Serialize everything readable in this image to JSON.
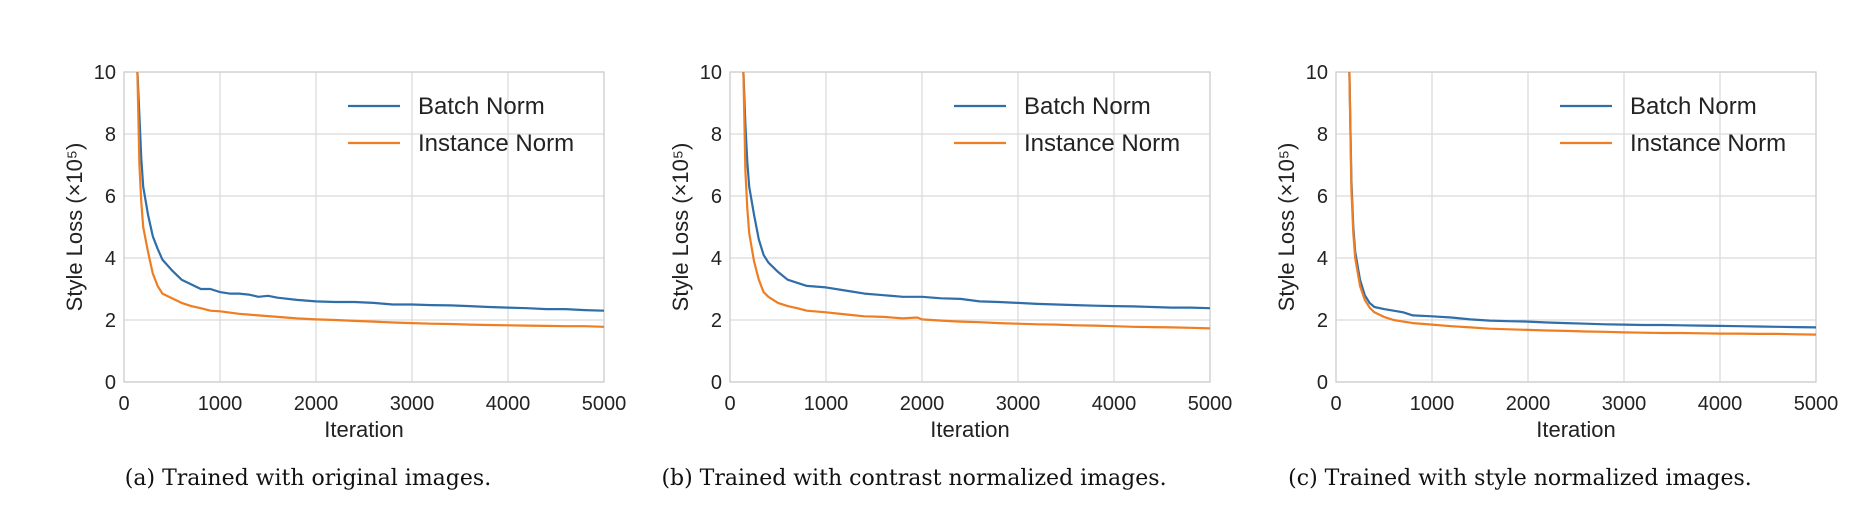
{
  "chart_data": [
    {
      "type": "line",
      "xlabel": "Iteration",
      "ylabel": "Style Loss",
      "ylabel_unit": "(×10⁵)",
      "xlim": [
        0,
        5000
      ],
      "ylim": [
        0,
        10
      ],
      "xticks": [
        0,
        1000,
        2000,
        3000,
        4000,
        5000
      ],
      "yticks": [
        0,
        2,
        4,
        6,
        8,
        10
      ],
      "grid": true,
      "legend_position": "top-right",
      "caption": "(a)  Trained with original images.",
      "series": [
        {
          "name": "Batch Norm",
          "color": "#2f6ea9",
          "points": [
            [
              140,
              10.0
            ],
            [
              160,
              8.6
            ],
            [
              180,
              7.2
            ],
            [
              200,
              6.3
            ],
            [
              250,
              5.4
            ],
            [
              300,
              4.7
            ],
            [
              350,
              4.3
            ],
            [
              400,
              3.95
            ],
            [
              500,
              3.6
            ],
            [
              600,
              3.3
            ],
            [
              700,
              3.15
            ],
            [
              800,
              3.0
            ],
            [
              900,
              3.0
            ],
            [
              1000,
              2.9
            ],
            [
              1100,
              2.85
            ],
            [
              1200,
              2.85
            ],
            [
              1300,
              2.82
            ],
            [
              1400,
              2.75
            ],
            [
              1500,
              2.78
            ],
            [
              1600,
              2.72
            ],
            [
              1800,
              2.65
            ],
            [
              2000,
              2.6
            ],
            [
              2200,
              2.58
            ],
            [
              2400,
              2.58
            ],
            [
              2600,
              2.55
            ],
            [
              2800,
              2.5
            ],
            [
              3000,
              2.5
            ],
            [
              3200,
              2.48
            ],
            [
              3400,
              2.47
            ],
            [
              3600,
              2.45
            ],
            [
              3800,
              2.42
            ],
            [
              4000,
              2.4
            ],
            [
              4200,
              2.38
            ],
            [
              4400,
              2.35
            ],
            [
              4600,
              2.35
            ],
            [
              4800,
              2.32
            ],
            [
              5000,
              2.3
            ]
          ]
        },
        {
          "name": "Instance Norm",
          "color": "#ef7d22",
          "points": [
            [
              140,
              10.0
            ],
            [
              160,
              7.0
            ],
            [
              180,
              5.8
            ],
            [
              200,
              5.0
            ],
            [
              250,
              4.2
            ],
            [
              300,
              3.5
            ],
            [
              350,
              3.1
            ],
            [
              400,
              2.85
            ],
            [
              500,
              2.7
            ],
            [
              600,
              2.55
            ],
            [
              700,
              2.45
            ],
            [
              800,
              2.38
            ],
            [
              900,
              2.3
            ],
            [
              1000,
              2.28
            ],
            [
              1200,
              2.2
            ],
            [
              1400,
              2.15
            ],
            [
              1600,
              2.1
            ],
            [
              1800,
              2.05
            ],
            [
              2000,
              2.02
            ],
            [
              2200,
              2.0
            ],
            [
              2400,
              1.97
            ],
            [
              2600,
              1.95
            ],
            [
              2800,
              1.92
            ],
            [
              3000,
              1.9
            ],
            [
              3200,
              1.88
            ],
            [
              3400,
              1.87
            ],
            [
              3600,
              1.85
            ],
            [
              3800,
              1.84
            ],
            [
              4000,
              1.83
            ],
            [
              4200,
              1.82
            ],
            [
              4400,
              1.81
            ],
            [
              4600,
              1.8
            ],
            [
              4800,
              1.8
            ],
            [
              5000,
              1.78
            ]
          ]
        }
      ]
    },
    {
      "type": "line",
      "xlabel": "Iteration",
      "ylabel": "Style Loss",
      "ylabel_unit": "(×10⁵)",
      "xlim": [
        0,
        5000
      ],
      "ylim": [
        0,
        10
      ],
      "xticks": [
        0,
        1000,
        2000,
        3000,
        4000,
        5000
      ],
      "yticks": [
        0,
        2,
        4,
        6,
        8,
        10
      ],
      "grid": true,
      "legend_position": "top-right",
      "caption": "(b)  Trained with contrast normalized images.",
      "series": [
        {
          "name": "Batch Norm",
          "color": "#2f6ea9",
          "points": [
            [
              140,
              10.0
            ],
            [
              160,
              8.3
            ],
            [
              180,
              7.1
            ],
            [
              200,
              6.3
            ],
            [
              250,
              5.4
            ],
            [
              300,
              4.6
            ],
            [
              350,
              4.1
            ],
            [
              400,
              3.85
            ],
            [
              500,
              3.55
            ],
            [
              600,
              3.3
            ],
            [
              700,
              3.2
            ],
            [
              800,
              3.1
            ],
            [
              1000,
              3.05
            ],
            [
              1200,
              2.95
            ],
            [
              1400,
              2.85
            ],
            [
              1600,
              2.8
            ],
            [
              1800,
              2.75
            ],
            [
              2000,
              2.75
            ],
            [
              2200,
              2.7
            ],
            [
              2400,
              2.68
            ],
            [
              2600,
              2.6
            ],
            [
              2800,
              2.58
            ],
            [
              3000,
              2.55
            ],
            [
              3200,
              2.52
            ],
            [
              3400,
              2.5
            ],
            [
              3600,
              2.48
            ],
            [
              3800,
              2.46
            ],
            [
              4000,
              2.45
            ],
            [
              4200,
              2.44
            ],
            [
              4400,
              2.42
            ],
            [
              4600,
              2.4
            ],
            [
              4800,
              2.4
            ],
            [
              5000,
              2.38
            ]
          ]
        },
        {
          "name": "Instance Norm",
          "color": "#ef7d22",
          "points": [
            [
              140,
              10.0
            ],
            [
              160,
              6.8
            ],
            [
              180,
              5.6
            ],
            [
              200,
              4.8
            ],
            [
              250,
              3.9
            ],
            [
              300,
              3.3
            ],
            [
              350,
              2.9
            ],
            [
              400,
              2.75
            ],
            [
              500,
              2.55
            ],
            [
              600,
              2.45
            ],
            [
              700,
              2.38
            ],
            [
              800,
              2.3
            ],
            [
              1000,
              2.25
            ],
            [
              1200,
              2.18
            ],
            [
              1400,
              2.12
            ],
            [
              1600,
              2.1
            ],
            [
              1800,
              2.05
            ],
            [
              1950,
              2.08
            ],
            [
              2000,
              2.02
            ],
            [
              2200,
              1.98
            ],
            [
              2400,
              1.95
            ],
            [
              2600,
              1.93
            ],
            [
              2800,
              1.9
            ],
            [
              3000,
              1.88
            ],
            [
              3200,
              1.86
            ],
            [
              3400,
              1.85
            ],
            [
              3600,
              1.83
            ],
            [
              3800,
              1.82
            ],
            [
              4000,
              1.8
            ],
            [
              4200,
              1.78
            ],
            [
              4400,
              1.77
            ],
            [
              4600,
              1.76
            ],
            [
              4800,
              1.75
            ],
            [
              5000,
              1.73
            ]
          ]
        }
      ]
    },
    {
      "type": "line",
      "xlabel": "Iteration",
      "ylabel": "Style Loss",
      "ylabel_unit": "(×10⁵)",
      "xlim": [
        0,
        5000
      ],
      "ylim": [
        0,
        10
      ],
      "xticks": [
        0,
        1000,
        2000,
        3000,
        4000,
        5000
      ],
      "yticks": [
        0,
        2,
        4,
        6,
        8,
        10
      ],
      "grid": true,
      "legend_position": "top-right",
      "caption": "(c)  Trained with style normalized images.",
      "series": [
        {
          "name": "Batch Norm",
          "color": "#2f6ea9",
          "points": [
            [
              140,
              10.0
            ],
            [
              160,
              6.5
            ],
            [
              180,
              5.0
            ],
            [
              200,
              4.2
            ],
            [
              250,
              3.3
            ],
            [
              300,
              2.8
            ],
            [
              350,
              2.55
            ],
            [
              400,
              2.42
            ],
            [
              500,
              2.35
            ],
            [
              600,
              2.3
            ],
            [
              700,
              2.25
            ],
            [
              800,
              2.15
            ],
            [
              1000,
              2.12
            ],
            [
              1200,
              2.08
            ],
            [
              1400,
              2.02
            ],
            [
              1600,
              1.98
            ],
            [
              1800,
              1.96
            ],
            [
              2000,
              1.95
            ],
            [
              2200,
              1.92
            ],
            [
              2400,
              1.9
            ],
            [
              2600,
              1.88
            ],
            [
              2800,
              1.86
            ],
            [
              3000,
              1.85
            ],
            [
              3200,
              1.84
            ],
            [
              3400,
              1.84
            ],
            [
              3600,
              1.83
            ],
            [
              3800,
              1.82
            ],
            [
              4000,
              1.81
            ],
            [
              4200,
              1.8
            ],
            [
              4400,
              1.79
            ],
            [
              4600,
              1.78
            ],
            [
              4800,
              1.77
            ],
            [
              5000,
              1.76
            ]
          ]
        },
        {
          "name": "Instance Norm",
          "color": "#ef7d22",
          "points": [
            [
              140,
              10.0
            ],
            [
              160,
              6.2
            ],
            [
              180,
              4.8
            ],
            [
              200,
              4.0
            ],
            [
              250,
              3.1
            ],
            [
              300,
              2.65
            ],
            [
              350,
              2.4
            ],
            [
              400,
              2.25
            ],
            [
              500,
              2.1
            ],
            [
              600,
              2.0
            ],
            [
              700,
              1.95
            ],
            [
              800,
              1.9
            ],
            [
              1000,
              1.85
            ],
            [
              1200,
              1.8
            ],
            [
              1400,
              1.76
            ],
            [
              1600,
              1.72
            ],
            [
              1800,
              1.7
            ],
            [
              2000,
              1.68
            ],
            [
              2200,
              1.66
            ],
            [
              2400,
              1.65
            ],
            [
              2600,
              1.63
            ],
            [
              2800,
              1.62
            ],
            [
              3000,
              1.6
            ],
            [
              3200,
              1.59
            ],
            [
              3400,
              1.58
            ],
            [
              3600,
              1.58
            ],
            [
              3800,
              1.57
            ],
            [
              4000,
              1.56
            ],
            [
              4200,
              1.56
            ],
            [
              4400,
              1.55
            ],
            [
              4600,
              1.55
            ],
            [
              4800,
              1.54
            ],
            [
              5000,
              1.53
            ]
          ]
        }
      ]
    }
  ]
}
